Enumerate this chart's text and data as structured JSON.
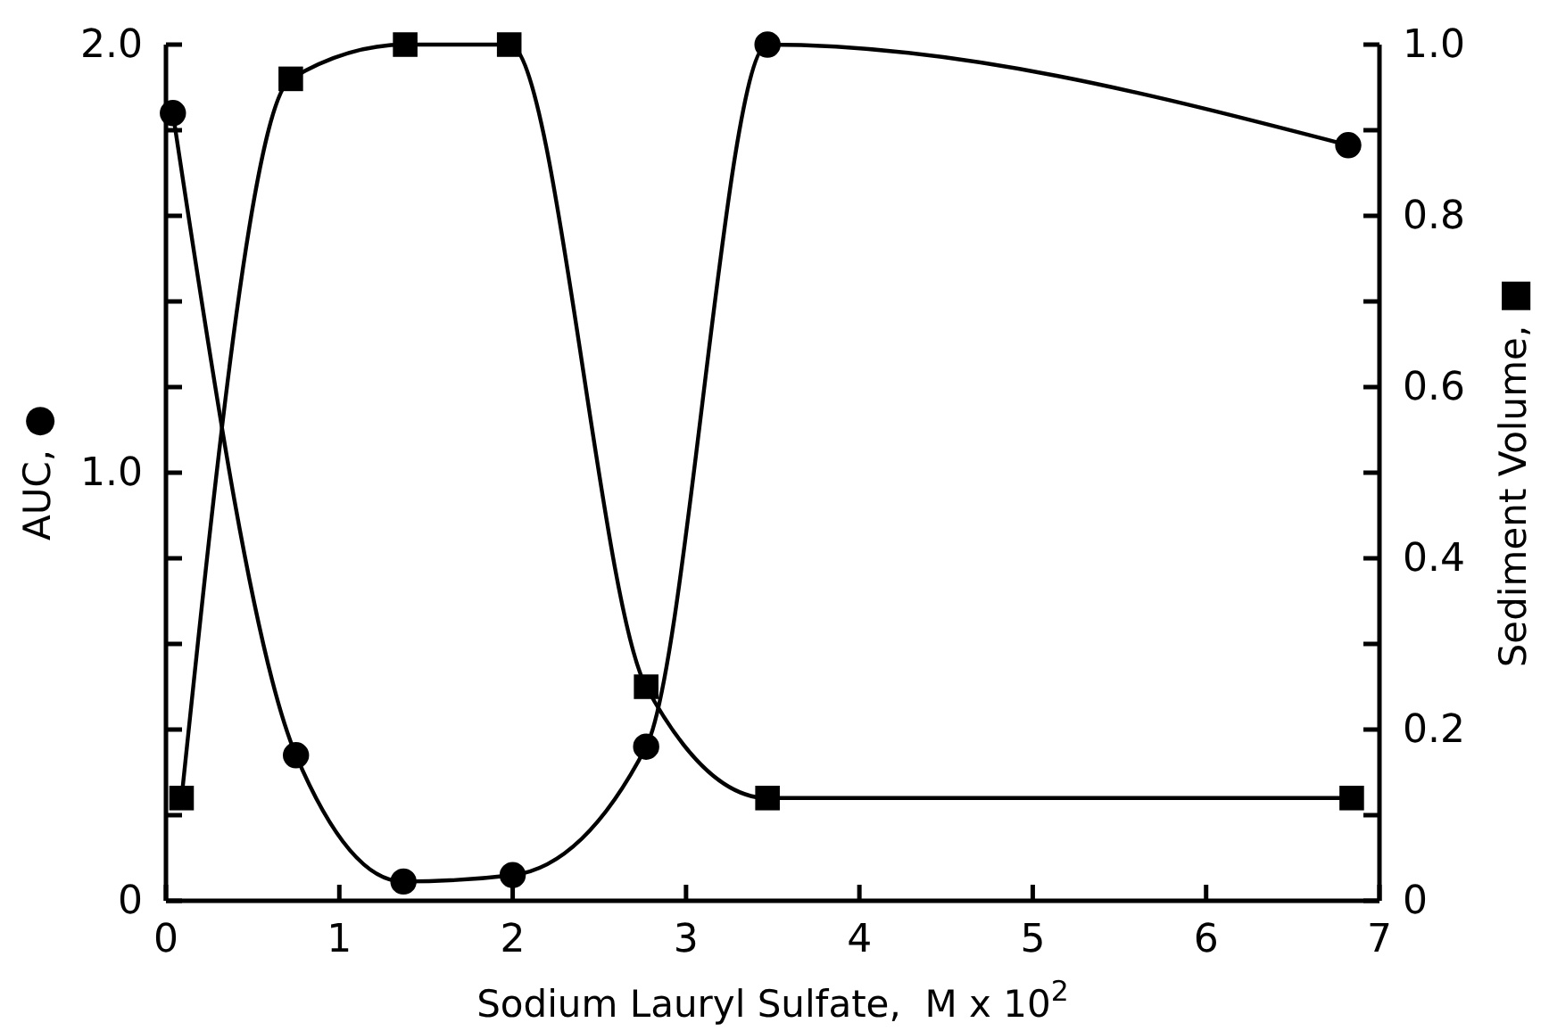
{
  "chart_data": {
    "type": "line",
    "xlabel": "Sodium Lauryl Sulfate,  M x 10$^{2}$",
    "ylabel": "AUC, ●",
    "y2label": "Sediment Volume, ■",
    "xlim": [
      0,
      7
    ],
    "xticks": [
      0,
      1,
      2,
      3,
      4,
      5,
      6,
      7
    ],
    "ylim": [
      0,
      2
    ],
    "yticks": [
      {
        "value": 0,
        "label": "0"
      },
      {
        "value": 0.2,
        "label": null
      },
      {
        "value": 0.4,
        "label": null
      },
      {
        "value": 0.6,
        "label": null
      },
      {
        "value": 0.8,
        "label": null
      },
      {
        "value": 1,
        "label": "1.0"
      },
      {
        "value": 1.2,
        "label": null
      },
      {
        "value": 1.4,
        "label": null
      },
      {
        "value": 1.6,
        "label": null
      },
      {
        "value": 1.8,
        "label": null
      },
      {
        "value": 2,
        "label": "2.0"
      }
    ],
    "y2lim": [
      0,
      1
    ],
    "y2ticks": [
      0,
      {
        "value": 0.1,
        "label": null
      },
      0.2,
      {
        "value": 0.3,
        "label": null
      },
      0.4,
      {
        "value": 0.5,
        "label": null
      },
      0.6,
      {
        "value": 0.7,
        "label": null
      },
      0.8,
      {
        "value": 0.9,
        "label": null
      },
      {
        "value": 1,
        "label": "1.0"
      }
    ],
    "line_style": "solid",
    "series": [
      {
        "color": "#000000",
        "marker": "circle",
        "x": [
          0.04,
          0.75,
          1.37,
          2.0,
          2.77,
          3.47,
          6.82
        ],
        "values": [
          1.84,
          0.34,
          0.045,
          0.06,
          0.36,
          2.0,
          1.765
        ]
      },
      {
        "color": "#000000",
        "marker": "square",
        "axis": "y2",
        "x": [
          0.09,
          0.72,
          1.38,
          1.98,
          2.77,
          3.47,
          6.84
        ],
        "values": [
          0.12,
          0.96,
          1.0,
          1.0,
          0.25,
          0.12,
          0.12
        ]
      }
    ]
  }
}
